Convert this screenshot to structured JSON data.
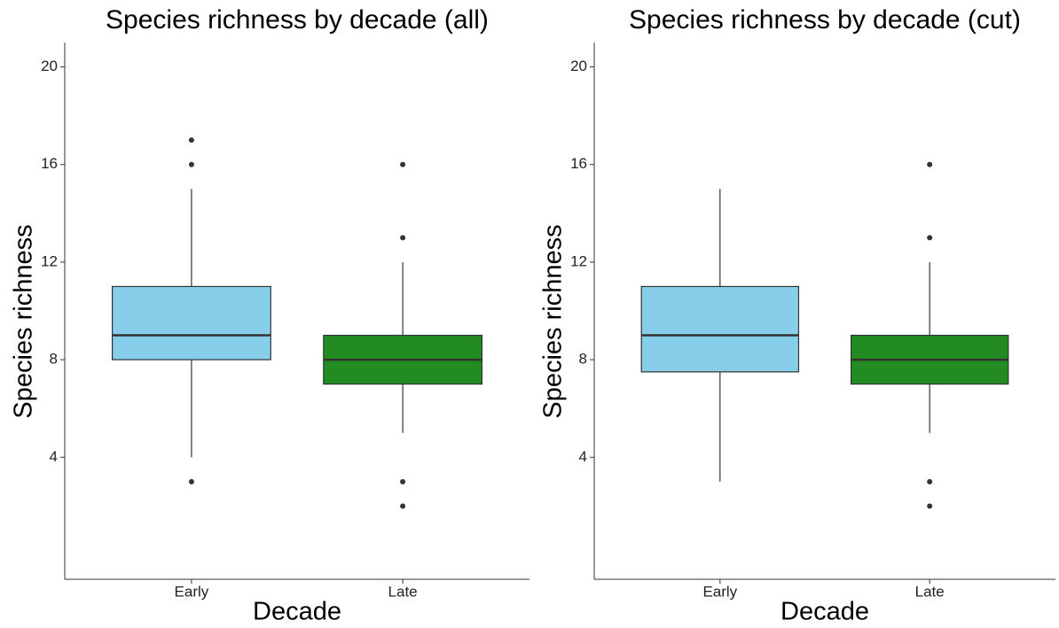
{
  "chart_data": [
    {
      "type": "box",
      "title": "Species richness by decade (all)",
      "x_label": "Decade",
      "y_label": "Species richness",
      "categories": [
        "Early",
        "Late"
      ],
      "colors": [
        "#87ceeb",
        "#228b22"
      ],
      "boxes": [
        {
          "min": 4,
          "q1": 8,
          "median": 9,
          "q3": 11,
          "max": 15,
          "outliers": [
            17,
            16,
            3
          ]
        },
        {
          "min": 5,
          "q1": 7,
          "median": 8,
          "q3": 9,
          "max": 12,
          "outliers": [
            16,
            13,
            3,
            2
          ]
        }
      ],
      "ylim": [
        -1,
        21
      ],
      "yticks": [
        4,
        8,
        12,
        16,
        20
      ]
    },
    {
      "type": "box",
      "title": "Species richness by decade (cut)",
      "x_label": "Decade",
      "y_label": "Species richness",
      "categories": [
        "Early",
        "Late"
      ],
      "colors": [
        "#87ceeb",
        "#228b22"
      ],
      "boxes": [
        {
          "min": 3,
          "q1": 7.5,
          "median": 9,
          "q3": 11,
          "max": 15,
          "outliers": []
        },
        {
          "min": 5,
          "q1": 7,
          "median": 8,
          "q3": 9,
          "max": 12,
          "outliers": [
            16,
            13,
            3,
            2
          ]
        }
      ],
      "ylim": [
        -1,
        21
      ],
      "yticks": [
        4,
        8,
        12,
        16,
        20
      ]
    }
  ]
}
